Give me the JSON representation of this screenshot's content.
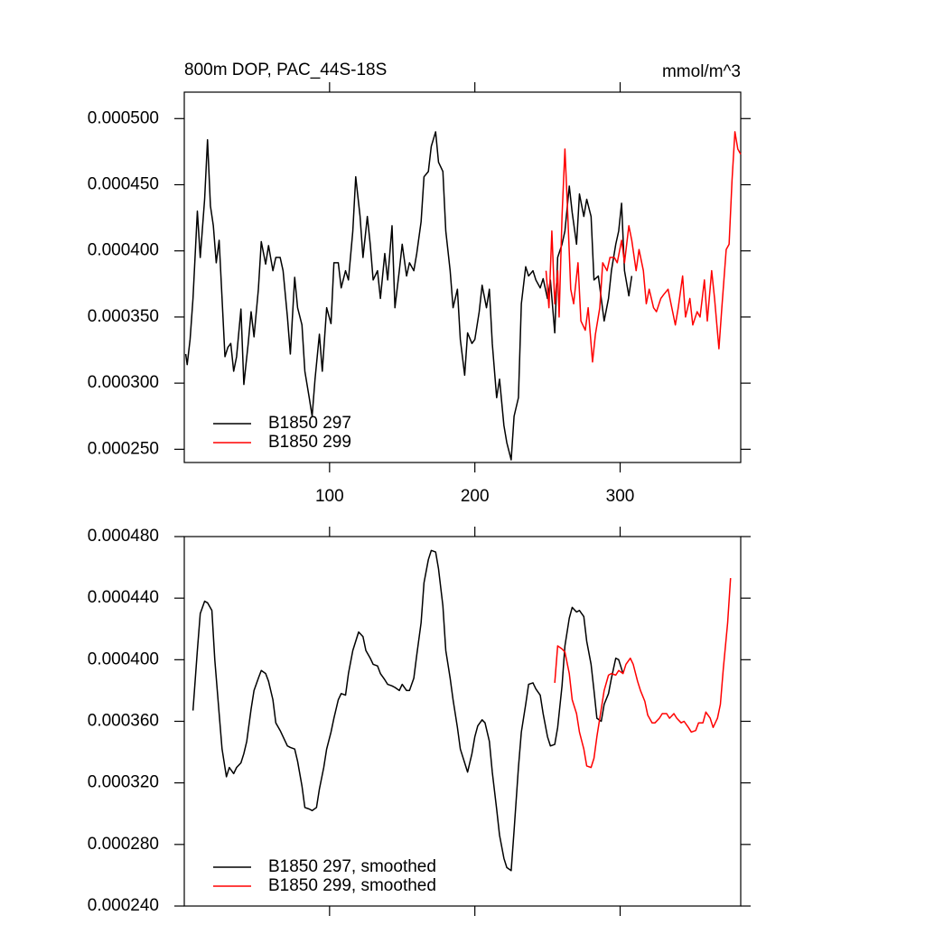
{
  "chart_data": [
    {
      "type": "line",
      "title": "800m DOP, PAC_44S-18S",
      "units": "mmol/m^3",
      "xlim": [
        0,
        383
      ],
      "xticks": [
        100,
        200,
        300
      ],
      "x_tick_labels": true,
      "ylim": [
        0.00024,
        0.00052
      ],
      "yticks": [
        {
          "value": 0.00025,
          "label": "0.000250"
        },
        {
          "value": 0.0003,
          "label": "0.000300"
        },
        {
          "value": 0.00035,
          "label": "0.000350"
        },
        {
          "value": 0.0004,
          "label": "0.000400"
        },
        {
          "value": 0.00045,
          "label": "0.000450"
        },
        {
          "value": 0.0005,
          "label": "0.000500"
        }
      ],
      "legend": "lower left",
      "series": [
        {
          "name": "B1850 297",
          "color": "#000000",
          "x": [
            1,
            2,
            4,
            6,
            9,
            11,
            14,
            16,
            18,
            20,
            22,
            24,
            26,
            28,
            30,
            32,
            34,
            36,
            39,
            41,
            44,
            46,
            48,
            51,
            53,
            56,
            58,
            61,
            63,
            66,
            68,
            71,
            73,
            76,
            78,
            81,
            83,
            86,
            88,
            90,
            93,
            95,
            98,
            101,
            103,
            106,
            108,
            111,
            113,
            116,
            118,
            121,
            123,
            126,
            128,
            130,
            133,
            135,
            138,
            140,
            143,
            145,
            148,
            150,
            153,
            155,
            158,
            160,
            163,
            165,
            168,
            170,
            173,
            175,
            178,
            180,
            183,
            185,
            188,
            190,
            193,
            195,
            198,
            200,
            203,
            205,
            208,
            210,
            212,
            215,
            217,
            220,
            222,
            225,
            227,
            230,
            232,
            235,
            237,
            240,
            242,
            245,
            247,
            250,
            252,
            255,
            257,
            260,
            262,
            265,
            267,
            270,
            272,
            275,
            277,
            280,
            282,
            285,
            287,
            289,
            292,
            294,
            297,
            299,
            301,
            303,
            306,
            308
          ],
          "values": [
            0.000322,
            0.000314,
            0.000333,
            0.000364,
            0.00043,
            0.000395,
            0.000439,
            0.000484,
            0.000434,
            0.000419,
            0.000391,
            0.000408,
            0.000364,
            0.00032,
            0.000327,
            0.00033,
            0.000309,
            0.00032,
            0.000356,
            0.000299,
            0.00033,
            0.000354,
            0.000335,
            0.000371,
            0.000407,
            0.00039,
            0.000404,
            0.000385,
            0.000395,
            0.000395,
            0.000385,
            0.00035,
            0.000322,
            0.00038,
            0.000357,
            0.000344,
            0.000309,
            0.000289,
            0.000275,
            0.000303,
            0.000337,
            0.000309,
            0.000357,
            0.000345,
            0.000391,
            0.000391,
            0.000372,
            0.000385,
            0.000378,
            0.000415,
            0.000456,
            0.000426,
            0.000395,
            0.000426,
            0.000405,
            0.000378,
            0.000385,
            0.000364,
            0.000398,
            0.000378,
            0.000419,
            0.000357,
            0.000385,
            0.000405,
            0.000381,
            0.000391,
            0.000385,
            0.000398,
            0.000422,
            0.000456,
            0.00046,
            0.000479,
            0.00049,
            0.000467,
            0.00046,
            0.000415,
            0.000385,
            0.000357,
            0.000371,
            0.000333,
            0.000306,
            0.000338,
            0.00033,
            0.000333,
            0.000354,
            0.000374,
            0.000357,
            0.000371,
            0.00033,
            0.000289,
            0.000303,
            0.000268,
            0.000255,
            0.000242,
            0.000275,
            0.000289,
            0.00036,
            0.000388,
            0.000381,
            0.000385,
            0.000378,
            0.000372,
            0.000379,
            0.000364,
            0.000378,
            0.000338,
            0.000395,
            0.000405,
            0.000415,
            0.000449,
            0.000429,
            0.000405,
            0.000443,
            0.000426,
            0.000439,
            0.000426,
            0.000378,
            0.000381,
            0.000364,
            0.000347,
            0.000364,
            0.000385,
            0.000405,
            0.000415,
            0.000436,
            0.000385,
            0.000366,
            0.000381
          ]
        },
        {
          "name": "B1850 299",
          "color": "#ff0000",
          "x": [
            249,
            251,
            253,
            255,
            257,
            258,
            260,
            262,
            264,
            266,
            268,
            271,
            273,
            276,
            278,
            281,
            283,
            286,
            288,
            291,
            293,
            296,
            298,
            301,
            303,
            306,
            308,
            311,
            313,
            316,
            318,
            320,
            323,
            325,
            328,
            330,
            333,
            335,
            338,
            340,
            343,
            345,
            348,
            350,
            353,
            355,
            358,
            360,
            363,
            365,
            368,
            370,
            373,
            375,
            377,
            379,
            381,
            383
          ],
          "values": [
            0.000385,
            0.000357,
            0.000415,
            0.00036,
            0.000385,
            0.00035,
            0.000426,
            0.000477,
            0.000426,
            0.000371,
            0.00036,
            0.000391,
            0.000347,
            0.00034,
            0.000357,
            0.000316,
            0.000337,
            0.000357,
            0.000391,
            0.000385,
            0.000395,
            0.000395,
            0.000391,
            0.000408,
            0.000391,
            0.000419,
            0.000408,
            0.000385,
            0.000401,
            0.000385,
            0.00036,
            0.000371,
            0.000357,
            0.000354,
            0.000364,
            0.000367,
            0.000371,
            0.00036,
            0.000344,
            0.000357,
            0.000381,
            0.00035,
            0.000364,
            0.000344,
            0.000354,
            0.00035,
            0.000378,
            0.000347,
            0.000385,
            0.000364,
            0.000326,
            0.000357,
            0.000401,
            0.000405,
            0.000453,
            0.00049,
            0.000477,
            0.000473
          ]
        }
      ]
    },
    {
      "type": "line",
      "xlim": [
        0,
        383
      ],
      "xticks": [
        100,
        200,
        300
      ],
      "x_tick_labels": false,
      "ylim": [
        0.00024,
        0.00048
      ],
      "yticks": [
        {
          "value": 0.00024,
          "label": "0.000240"
        },
        {
          "value": 0.00028,
          "label": "0.000280"
        },
        {
          "value": 0.00032,
          "label": "0.000320"
        },
        {
          "value": 0.00036,
          "label": "0.000360"
        },
        {
          "value": 0.0004,
          "label": "0.000400"
        },
        {
          "value": 0.00044,
          "label": "0.000440"
        },
        {
          "value": 0.00048,
          "label": "0.000480"
        }
      ],
      "legend": "lower left",
      "series": [
        {
          "name": "B1850 297, smoothed",
          "color": "#000000",
          "x": [
            6,
            9,
            11,
            14,
            16,
            19,
            21,
            24,
            26,
            29,
            31,
            34,
            36,
            39,
            41,
            43,
            46,
            48,
            51,
            53,
            56,
            58,
            61,
            63,
            66,
            68,
            71,
            73,
            76,
            78,
            81,
            83,
            86,
            88,
            91,
            93,
            96,
            98,
            101,
            103,
            106,
            108,
            111,
            113,
            116,
            118,
            120,
            123,
            125,
            128,
            130,
            133,
            135,
            138,
            140,
            143,
            145,
            148,
            150,
            153,
            155,
            158,
            160,
            163,
            165,
            168,
            170,
            173,
            175,
            178,
            180,
            183,
            185,
            188,
            190,
            193,
            195,
            198,
            200,
            202,
            205,
            207,
            210,
            212,
            215,
            217,
            220,
            222,
            225,
            227,
            230,
            232,
            235,
            237,
            240,
            242,
            245,
            247,
            250,
            252,
            255,
            257,
            260,
            262,
            265,
            267,
            270,
            272,
            275,
            277,
            280,
            282,
            284,
            287,
            289,
            292,
            294,
            297,
            299,
            302
          ],
          "values": [
            0.000367,
            0.000406,
            0.00043,
            0.000438,
            0.000437,
            0.000432,
            0.0004,
            0.000365,
            0.000342,
            0.000324,
            0.00033,
            0.000326,
            0.00033,
            0.000333,
            0.000339,
            0.000347,
            0.000368,
            0.00038,
            0.000388,
            0.000393,
            0.000391,
            0.000386,
            0.000374,
            0.000359,
            0.000354,
            0.00035,
            0.000344,
            0.000343,
            0.000342,
            0.000334,
            0.000318,
            0.000304,
            0.000303,
            0.000302,
            0.000304,
            0.000316,
            0.00033,
            0.000342,
            0.000353,
            0.000362,
            0.000374,
            0.000378,
            0.000377,
            0.000391,
            0.000406,
            0.000412,
            0.000418,
            0.000415,
            0.000406,
            0.000401,
            0.000397,
            0.000396,
            0.000391,
            0.000387,
            0.000384,
            0.000383,
            0.000382,
            0.00038,
            0.000384,
            0.00038,
            0.00038,
            0.000388,
            0.000403,
            0.000424,
            0.00045,
            0.000465,
            0.000471,
            0.00047,
            0.000459,
            0.000435,
            0.000406,
            0.000388,
            0.000374,
            0.000356,
            0.000342,
            0.000333,
            0.000327,
            0.000339,
            0.00035,
            0.000357,
            0.000361,
            0.000359,
            0.000347,
            0.000327,
            0.000303,
            0.000286,
            0.000271,
            0.000265,
            0.000263,
            0.000289,
            0.00033,
            0.000353,
            0.000371,
            0.000384,
            0.000385,
            0.000381,
            0.000377,
            0.000365,
            0.00035,
            0.000344,
            0.000345,
            0.000356,
            0.000383,
            0.000409,
            0.000427,
            0.000434,
            0.000431,
            0.000432,
            0.000428,
            0.000412,
            0.000397,
            0.00038,
            0.000362,
            0.00036,
            0.000371,
            0.000378,
            0.000388,
            0.000401,
            0.0004,
            0.000391
          ]
        },
        {
          "name": "B1850 299, smoothed",
          "color": "#ff0000",
          "x": [
            255,
            257,
            260,
            262,
            265,
            267,
            270,
            272,
            275,
            277,
            280,
            282,
            284,
            287,
            289,
            292,
            294,
            297,
            299,
            302,
            304,
            307,
            309,
            312,
            314,
            317,
            319,
            322,
            324,
            327,
            329,
            332,
            334,
            337,
            339,
            342,
            344,
            347,
            349,
            352,
            354,
            357,
            359,
            362,
            364,
            367,
            369,
            371,
            374,
            376
          ],
          "values": [
            0.000385,
            0.000409,
            0.000407,
            0.000405,
            0.000391,
            0.000374,
            0.000365,
            0.000353,
            0.000342,
            0.000331,
            0.00033,
            0.000336,
            0.00035,
            0.000368,
            0.00038,
            0.00039,
            0.000391,
            0.00039,
            0.000393,
            0.000391,
            0.000397,
            0.000401,
            0.000397,
            0.000386,
            0.00038,
            0.000373,
            0.000364,
            0.000359,
            0.000359,
            0.000362,
            0.000365,
            0.000365,
            0.000362,
            0.000365,
            0.000362,
            0.000359,
            0.00036,
            0.000356,
            0.000353,
            0.000354,
            0.000359,
            0.000359,
            0.000366,
            0.000362,
            0.000356,
            0.000362,
            0.000371,
            0.000394,
            0.000424,
            0.000453
          ]
        }
      ]
    }
  ]
}
